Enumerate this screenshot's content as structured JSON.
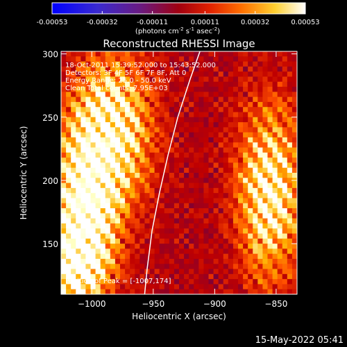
{
  "chart_data": {
    "type": "heatmap",
    "title": "Reconstructed RHESSI Image",
    "xlabel": "Heliocentric X (arcsec)",
    "ylabel": "Heliocentric Y (arcsec)",
    "xlim": [
      -1025,
      -833
    ],
    "ylim": [
      110,
      302
    ],
    "x_ticks": [
      -1000,
      -950,
      -900,
      -850
    ],
    "y_ticks": [
      150,
      200,
      250,
      300
    ],
    "colorbar": {
      "ticks": [
        -0.00053,
        -0.00032,
        -0.00011,
        0.00011,
        0.00032,
        0.00053
      ],
      "tick_labels": [
        "-0.00053",
        "-0.00032",
        "-0.00011",
        "0.00011",
        "0.00032",
        "0.00053"
      ],
      "units_text": "(photons cm",
      "units_sup1": "-2",
      "units_mid": " s",
      "units_sup2": "-1",
      "units_end": " asec",
      "units_sup3": "-2",
      "units_close": ")",
      "colormap": [
        "#0000ff",
        "#4a2ab0",
        "#700040",
        "#c00000",
        "#ff5000",
        "#ffb000",
        "#ffffc0",
        "#ffffff"
      ]
    },
    "annotations": {
      "line1": "18-Oct-2011 15:39:52.000 to 15:43:52.000",
      "line2": "Detectors: 3F 4F 5F 6F 7F 8F, Att 0",
      "line3": "Energy Range: 25.0 - 50.0 keV",
      "line4": "Clean     Total counts: 7.95E+03",
      "peak": "Position of Peak = [-1007,174]"
    },
    "limb_curve": [
      [
        -957,
        110
      ],
      [
        -955,
        130
      ],
      [
        -951,
        160
      ],
      [
        -945,
        190
      ],
      [
        -938,
        220
      ],
      [
        -930,
        250
      ],
      [
        -920,
        280
      ],
      [
        -912,
        302
      ]
    ],
    "structure": {
      "grid": [
        48,
        48
      ],
      "stripe_angle_deg": 35,
      "bright_regions": [
        {
          "x": -1005,
          "y": 175,
          "sx": 18,
          "sy": 40,
          "amp": 1.0
        },
        {
          "x": -985,
          "y": 240,
          "sx": 22,
          "sy": 38,
          "amp": 0.85
        },
        {
          "x": -855,
          "y": 190,
          "sx": 18,
          "sy": 45,
          "amp": 0.8
        },
        {
          "x": -1015,
          "y": 130,
          "sx": 15,
          "sy": 20,
          "amp": 0.75
        }
      ]
    }
  },
  "footer": {
    "timestamp": "15-May-2022 05:41"
  }
}
